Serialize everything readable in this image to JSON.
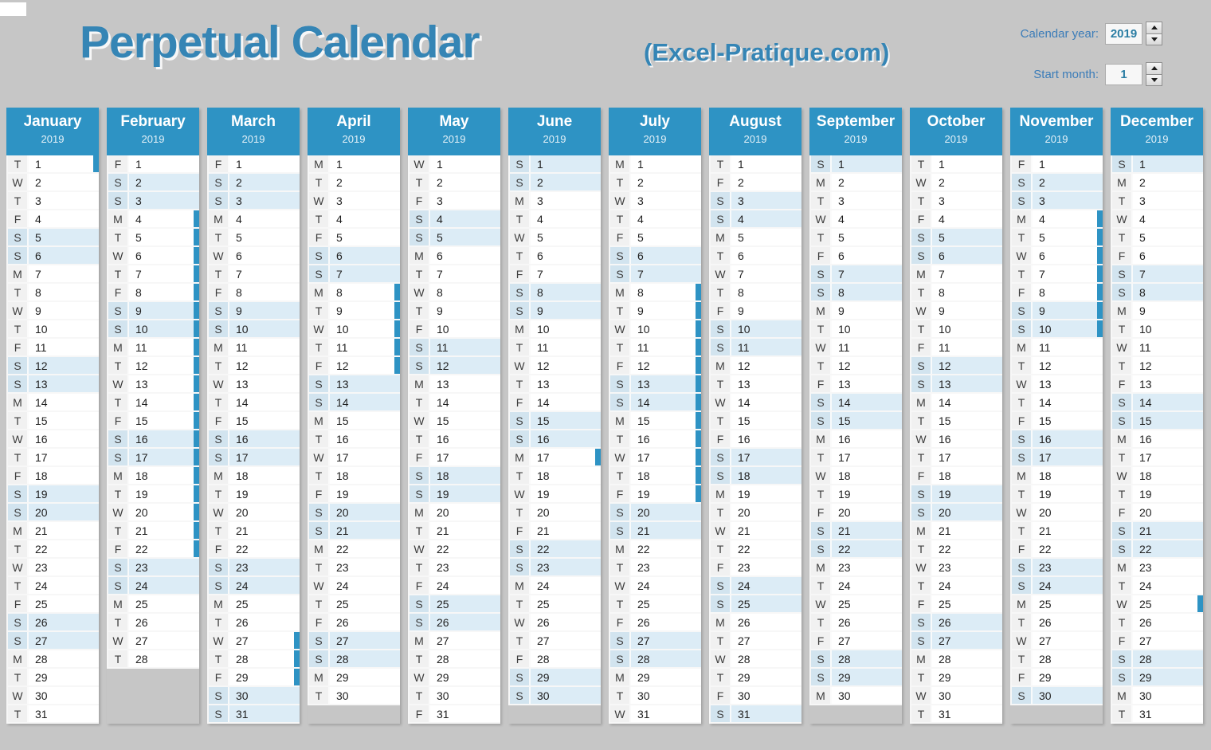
{
  "header": {
    "title": "Perpetual Calendar",
    "site_credit": "(Excel-Pratique.com)"
  },
  "controls": {
    "calendar_year": {
      "label": "Calendar year:",
      "value": "2019"
    },
    "start_month": {
      "label": "Start month:",
      "value": "1"
    }
  },
  "calendar": {
    "year": "2019",
    "day_letter_cycle": [
      "M",
      "T",
      "W",
      "T",
      "F",
      "S",
      "S"
    ],
    "weekend_indices": [
      5,
      6
    ],
    "months": [
      {
        "name": "January",
        "year": "2019",
        "days": 31,
        "start_index": 1,
        "event_bars": [
          [
            1,
            1
          ]
        ]
      },
      {
        "name": "February",
        "year": "2019",
        "days": 28,
        "start_index": 4,
        "event_bars": [
          [
            4,
            22
          ]
        ]
      },
      {
        "name": "March",
        "year": "2019",
        "days": 31,
        "start_index": 4,
        "event_bars": [
          [
            27,
            29
          ]
        ]
      },
      {
        "name": "April",
        "year": "2019",
        "days": 30,
        "start_index": 0,
        "event_bars": [
          [
            8,
            12
          ]
        ]
      },
      {
        "name": "May",
        "year": "2019",
        "days": 31,
        "start_index": 2,
        "event_bars": []
      },
      {
        "name": "June",
        "year": "2019",
        "days": 30,
        "start_index": 5,
        "event_bars": [
          [
            17,
            17
          ]
        ]
      },
      {
        "name": "July",
        "year": "2019",
        "days": 31,
        "start_index": 0,
        "event_bars": [
          [
            8,
            19
          ]
        ]
      },
      {
        "name": "August",
        "year": "2019",
        "days": 31,
        "start_index": 3,
        "event_bars": []
      },
      {
        "name": "September",
        "year": "2019",
        "days": 30,
        "start_index": 6,
        "event_bars": []
      },
      {
        "name": "October",
        "year": "2019",
        "days": 31,
        "start_index": 1,
        "event_bars": []
      },
      {
        "name": "November",
        "year": "2019",
        "days": 30,
        "start_index": 4,
        "event_bars": [
          [
            4,
            10
          ]
        ]
      },
      {
        "name": "December",
        "year": "2019",
        "days": 31,
        "start_index": 6,
        "event_bars": [
          [
            25,
            25
          ]
        ]
      }
    ]
  },
  "colors": {
    "header_blue": "#2e93c4",
    "event_bar_blue": "#2e93c4",
    "weekend_blue": "#dcecf6",
    "weekend_letter_blue": "#d2e4ef",
    "weekday_letter_gray": "#f1f1f1",
    "title_blue": "#3585b5",
    "control_label_blue": "#3b7cb8",
    "control_value_blue": "#2a7da3",
    "background_gray": "#c6c6c6"
  }
}
